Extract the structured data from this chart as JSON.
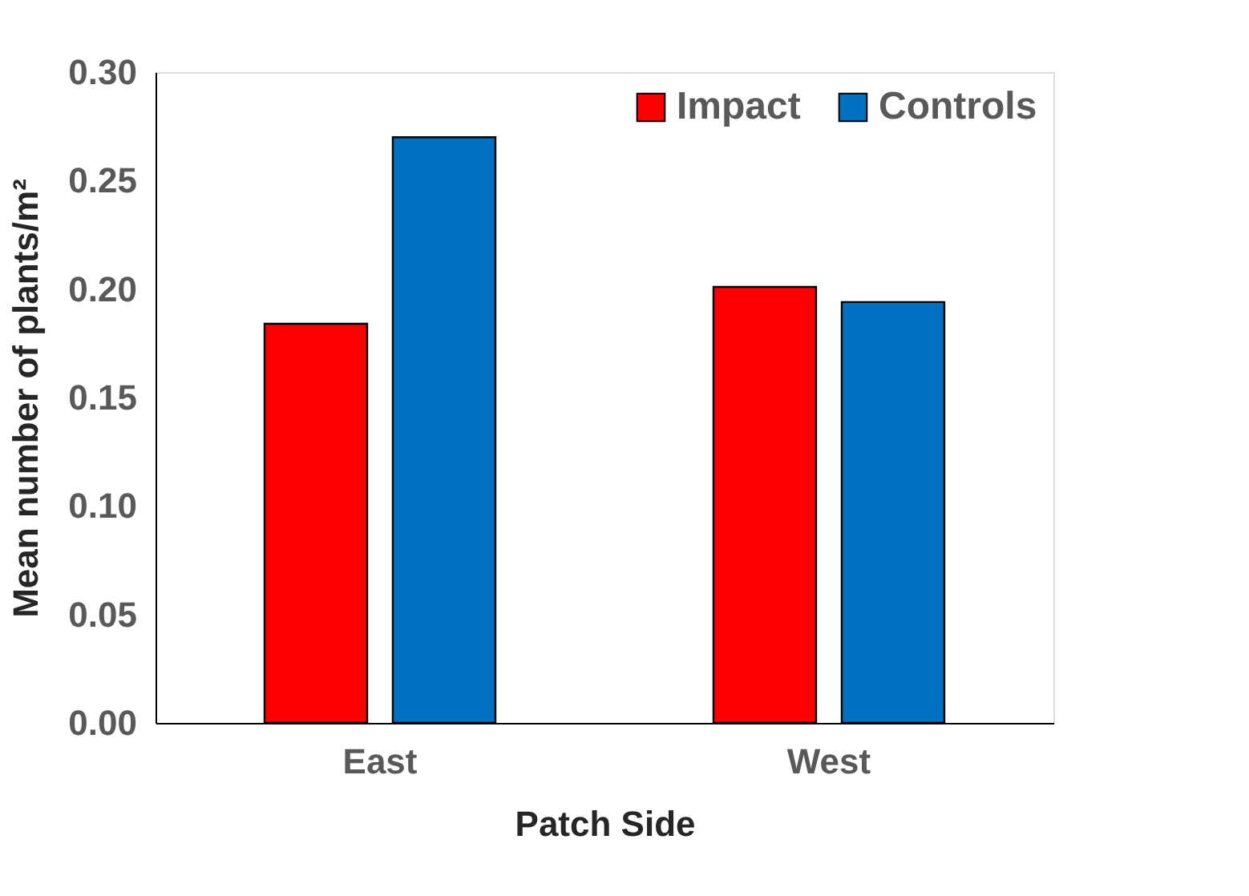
{
  "chart_data": {
    "type": "bar",
    "xlabel": "Patch Side",
    "ylabel": "Mean number of plants/m²",
    "categories": [
      "East",
      "West"
    ],
    "series": [
      {
        "name": "Impact",
        "color": "#ff0000",
        "values": [
          0.184,
          0.201
        ]
      },
      {
        "name": "Controls",
        "color": "#0070c0",
        "values": [
          0.27,
          0.194
        ]
      }
    ],
    "ylim": [
      0,
      0.3
    ],
    "yticks": [
      {
        "value": 0,
        "label": "0.00"
      },
      0.05,
      {
        "value": 0.1,
        "label": "0.10"
      },
      0.15,
      {
        "value": 0.2,
        "label": "0.20"
      },
      0.25,
      {
        "value": 0.3,
        "label": "0.30"
      }
    ],
    "grid": false,
    "legend": "top right"
  }
}
